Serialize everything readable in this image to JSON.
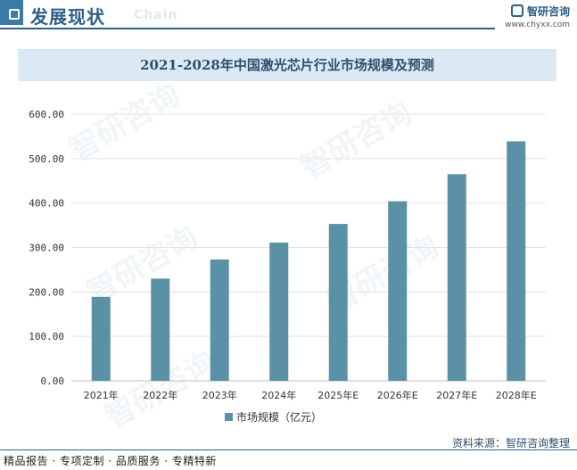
{
  "header": {
    "section_title": "发展现状",
    "section_en": "Chain",
    "brand_name": "智研咨询",
    "brand_url": "www.chyxx.com"
  },
  "watermark_text": "智研咨询",
  "chart_data": {
    "type": "bar",
    "title": "2021-2028年中国激光芯片行业市场规模及预测",
    "categories": [
      "2021年",
      "2022年",
      "2023年",
      "2024年",
      "2025年E",
      "2026年E",
      "2027年E",
      "2028年E"
    ],
    "series": [
      {
        "name": "市场规模（亿元）",
        "values": [
          189,
          230,
          273,
          311,
          353,
          404,
          465,
          539
        ],
        "color": "#5b91a6"
      }
    ],
    "ylim": [
      0,
      600
    ],
    "yticks": [
      "0.00",
      "100.00",
      "200.00",
      "300.00",
      "400.00",
      "500.00",
      "600.00"
    ],
    "grid": true,
    "legend": "bottom-center"
  },
  "footer": {
    "source": "资料来源：智研咨询整理",
    "tagline": "精品报告 · 专项定制 · 品质服务 · 专精特新"
  }
}
